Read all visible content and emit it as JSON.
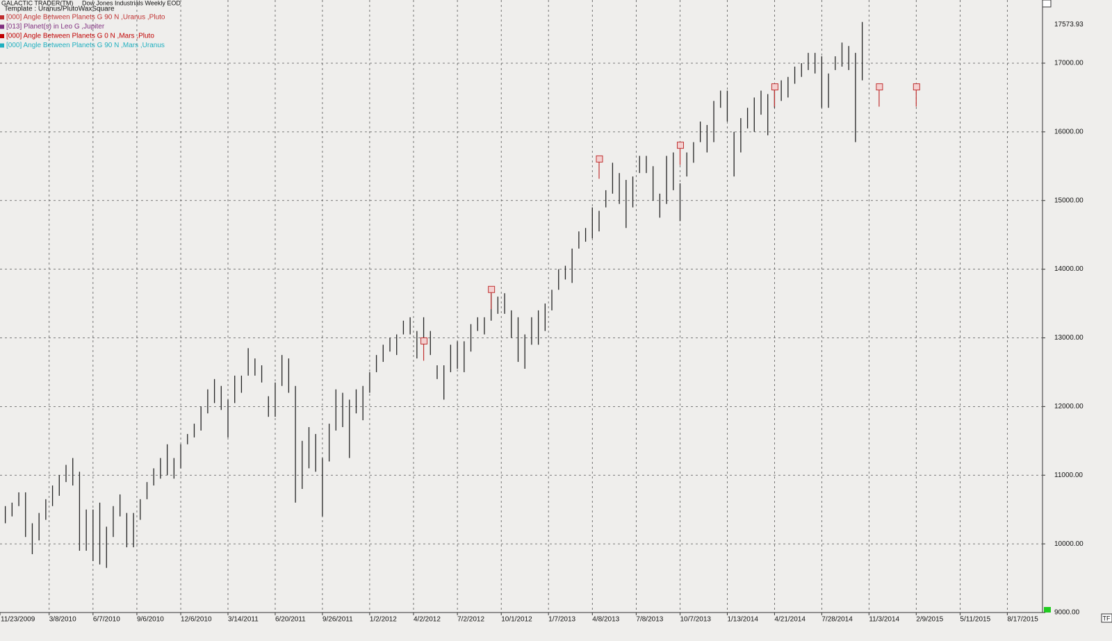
{
  "chart_data": {
    "type": "ohlc",
    "title": "GALACTIC TRADER(TM)",
    "subtitle": "Dow Jones Industrials Weekly EOD",
    "template": "Template : Uranus/PlutoWaxSquare",
    "legend": [
      {
        "name": "[000] Angle Between Planets G 90 N ,Uranus ,Pluto",
        "color": "#c03030"
      },
      {
        "name": "[013] Planet(s) in Leo G ,Jupiter",
        "color": "#803080"
      },
      {
        "name": "[000] Angle Between Planets G 0 N ,Mars ,Pluto",
        "color": "#c00000"
      },
      {
        "name": "[000] Angle Between Planets G 90 N ,Mars ,Uranus",
        "color": "#20b0c0"
      }
    ],
    "color": "#222222",
    "grid": true,
    "last_value": 17573.93,
    "corner_button": "TF",
    "xlim": [
      "2009-11-26",
      "2015-10-29"
    ],
    "ylim": [
      9000,
      17920
    ],
    "yticks": [
      {
        "value": 9000,
        "label": "9000.00"
      },
      {
        "value": 10000,
        "label": "10000.00"
      },
      {
        "value": 11000,
        "label": "11000.00"
      },
      {
        "value": 12000,
        "label": "12000.00"
      },
      {
        "value": 13000,
        "label": "13000.00"
      },
      {
        "value": 14000,
        "label": "14000.00"
      },
      {
        "value": 15000,
        "label": "15000.00"
      },
      {
        "value": 16000,
        "label": "16000.00"
      },
      {
        "value": 17000,
        "label": "17000.00"
      }
    ],
    "xticks": [
      {
        "value": "2009-11-23",
        "label": "11/23/2009"
      },
      {
        "value": "2010-03-08",
        "label": "3/8/2010"
      },
      {
        "value": "2010-06-07",
        "label": "6/7/2010"
      },
      {
        "value": "2010-09-06",
        "label": "9/6/2010"
      },
      {
        "value": "2010-12-06",
        "label": "12/6/2010"
      },
      {
        "value": "2011-03-14",
        "label": "3/14/2011"
      },
      {
        "value": "2011-06-20",
        "label": "6/20/2011"
      },
      {
        "value": "2011-09-26",
        "label": "9/26/2011"
      },
      {
        "value": "2012-01-02",
        "label": "1/2/2012"
      },
      {
        "value": "2012-04-02",
        "label": "4/2/2012"
      },
      {
        "value": "2012-07-02",
        "label": "7/2/2012"
      },
      {
        "value": "2012-10-01",
        "label": "10/1/2012"
      },
      {
        "value": "2013-01-07",
        "label": "1/7/2013"
      },
      {
        "value": "2013-04-08",
        "label": "4/8/2013"
      },
      {
        "value": "2013-07-08",
        "label": "7/8/2013"
      },
      {
        "value": "2013-10-07",
        "label": "10/7/2013"
      },
      {
        "value": "2014-01-13",
        "label": "1/13/2014"
      },
      {
        "value": "2014-04-21",
        "label": "4/21/2014"
      },
      {
        "value": "2014-07-28",
        "label": "7/28/2014"
      },
      {
        "value": "2014-11-03",
        "label": "11/3/2014"
      },
      {
        "value": "2015-02-09",
        "label": "2/9/2015"
      },
      {
        "value": "2015-05-11",
        "label": "5/11/2015"
      },
      {
        "value": "2015-08-17",
        "label": "8/17/2015"
      }
    ],
    "markers": [
      {
        "x": "2012-04-23",
        "y": 12950
      },
      {
        "x": "2012-09-10",
        "y": 13700
      },
      {
        "x": "2013-04-22",
        "y": 15600
      },
      {
        "x": "2013-10-07",
        "y": 15800
      },
      {
        "x": "2014-04-21",
        "y": 16650
      },
      {
        "x": "2014-11-24",
        "y": 16650
      },
      {
        "x": "2015-02-09",
        "y": 16650
      }
    ],
    "x": [
      "2009-11-23",
      "2009-12-07",
      "2009-12-21",
      "2010-01-04",
      "2010-01-18",
      "2010-02-01",
      "2010-02-15",
      "2010-03-01",
      "2010-03-15",
      "2010-03-29",
      "2010-04-12",
      "2010-04-26",
      "2010-05-10",
      "2010-05-24",
      "2010-06-07",
      "2010-06-21",
      "2010-07-05",
      "2010-07-19",
      "2010-08-02",
      "2010-08-16",
      "2010-08-30",
      "2010-09-13",
      "2010-09-27",
      "2010-10-11",
      "2010-10-25",
      "2010-11-08",
      "2010-11-22",
      "2010-12-06",
      "2010-12-20",
      "2011-01-03",
      "2011-01-17",
      "2011-01-31",
      "2011-02-14",
      "2011-02-28",
      "2011-03-14",
      "2011-03-28",
      "2011-04-11",
      "2011-04-25",
      "2011-05-09",
      "2011-05-23",
      "2011-06-06",
      "2011-06-20",
      "2011-07-04",
      "2011-07-18",
      "2011-08-01",
      "2011-08-15",
      "2011-08-29",
      "2011-09-12",
      "2011-09-26",
      "2011-10-10",
      "2011-10-24",
      "2011-11-07",
      "2011-11-21",
      "2011-12-05",
      "2011-12-19",
      "2012-01-02",
      "2012-01-16",
      "2012-01-30",
      "2012-02-13",
      "2012-02-27",
      "2012-03-12",
      "2012-03-26",
      "2012-04-09",
      "2012-04-23",
      "2012-05-07",
      "2012-05-21",
      "2012-06-04",
      "2012-06-18",
      "2012-07-02",
      "2012-07-16",
      "2012-07-30",
      "2012-08-13",
      "2012-08-27",
      "2012-09-10",
      "2012-09-24",
      "2012-10-08",
      "2012-10-22",
      "2012-11-05",
      "2012-11-19",
      "2012-12-03",
      "2012-12-17",
      "2012-12-31",
      "2013-01-14",
      "2013-01-28",
      "2013-02-11",
      "2013-02-25",
      "2013-03-11",
      "2013-03-25",
      "2013-04-08",
      "2013-04-22",
      "2013-05-06",
      "2013-05-20",
      "2013-06-03",
      "2013-06-17",
      "2013-07-01",
      "2013-07-15",
      "2013-07-29",
      "2013-08-12",
      "2013-08-26",
      "2013-09-09",
      "2013-09-23",
      "2013-10-07",
      "2013-10-21",
      "2013-11-04",
      "2013-11-18",
      "2013-12-02",
      "2013-12-16",
      "2013-12-30",
      "2014-01-13",
      "2014-01-27",
      "2014-02-10",
      "2014-02-24",
      "2014-03-10",
      "2014-03-24",
      "2014-04-07",
      "2014-04-21",
      "2014-05-05",
      "2014-05-19",
      "2014-06-02",
      "2014-06-16",
      "2014-06-30",
      "2014-07-14",
      "2014-07-28",
      "2014-08-11",
      "2014-08-25",
      "2014-09-08",
      "2014-09-22",
      "2014-10-06",
      "2014-10-20"
    ],
    "high": [
      10500,
      10550,
      10600,
      10750,
      10750,
      10300,
      10450,
      10650,
      10850,
      11000,
      11150,
      11250,
      11050,
      10500,
      10500,
      10600,
      10250,
      10550,
      10720,
      10450,
      10450,
      10650,
      10900,
      11100,
      11250,
      11450,
      11250,
      11450,
      11600,
      11750,
      12000,
      12250,
      12400,
      12300,
      12100,
      12450,
      12450,
      12850,
      12700,
      12600,
      12150,
      12350,
      12750,
      12700,
      12300,
      11500,
      11700,
      11600,
      11250,
      11750,
      12250,
      12200,
      12100,
      12250,
      12300,
      12500,
      12750,
      12900,
      13000,
      13050,
      13250,
      13300,
      13100,
      13300,
      13100,
      12600,
      12600,
      12900,
      12950,
      12950,
      13200,
      13300,
      13300,
      13650,
      13600,
      13650,
      13400,
      13300,
      13050,
      13300,
      13400,
      13500,
      13700,
      14000,
      14050,
      14300,
      14550,
      14600,
      14900,
      14850,
      15150,
      15550,
      15400,
      15300,
      15350,
      15650,
      15650,
      15500,
      15100,
      15650,
      15700,
      15250,
      15700,
      15850,
      16150,
      16100,
      16450,
      16600,
      16600,
      16000,
      16200,
      16350,
      16500,
      16600,
      16550,
      16650,
      16750,
      16800,
      16950,
      17000,
      17150,
      17150,
      17100,
      16850,
      17100,
      17300,
      17250,
      17150,
      17600
    ],
    "low": [
      10250,
      10300,
      10400,
      10550,
      10100,
      9850,
      10050,
      10350,
      10550,
      10700,
      10900,
      10850,
      9900,
      9900,
      9750,
      9700,
      9650,
      10100,
      10400,
      9950,
      9950,
      10350,
      10650,
      10850,
      10950,
      11000,
      10950,
      11100,
      11450,
      11550,
      11650,
      11900,
      12050,
      11950,
      11550,
      12050,
      12200,
      12450,
      12450,
      12350,
      11850,
      11850,
      12300,
      12200,
      10600,
      10800,
      11100,
      11050,
      10400,
      11200,
      11650,
      11700,
      11250,
      11900,
      11800,
      12200,
      12500,
      12650,
      12800,
      12750,
      13050,
      13050,
      12700,
      12900,
      12750,
      12400,
      12100,
      12500,
      12550,
      12500,
      12800,
      13100,
      13050,
      13250,
      13350,
      13350,
      13000,
      12650,
      12550,
      12900,
      12900,
      13100,
      13400,
      13700,
      13850,
      13800,
      14300,
      14400,
      14450,
      14550,
      14900,
      15100,
      14950,
      14600,
      14900,
      15400,
      15400,
      15000,
      14750,
      14950,
      15150,
      14700,
      15350,
      15550,
      15850,
      15700,
      15850,
      16350,
      16150,
      15350,
      15700,
      16050,
      16000,
      16250,
      15950,
      16350,
      16450,
      16500,
      16700,
      16800,
      16900,
      16850,
      16350,
      16350,
      16900,
      16950,
      16900,
      15850,
      16750
    ]
  }
}
